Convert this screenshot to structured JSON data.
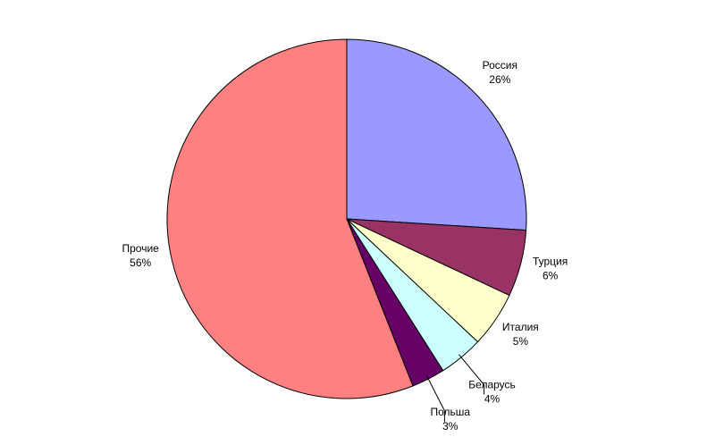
{
  "chart_data": {
    "type": "pie",
    "categories": [
      "Россия",
      "Турция",
      "Италия",
      "Беларусь",
      "Польша",
      "Прочие"
    ],
    "values": [
      26,
      6,
      5,
      4,
      3,
      56
    ],
    "value_labels": [
      "26%",
      "6%",
      "5%",
      "4%",
      "3%",
      "56%"
    ],
    "colors": [
      "#9999ff",
      "#993366",
      "#ffffcc",
      "#ccffff",
      "#660066",
      "#ff8080"
    ]
  }
}
